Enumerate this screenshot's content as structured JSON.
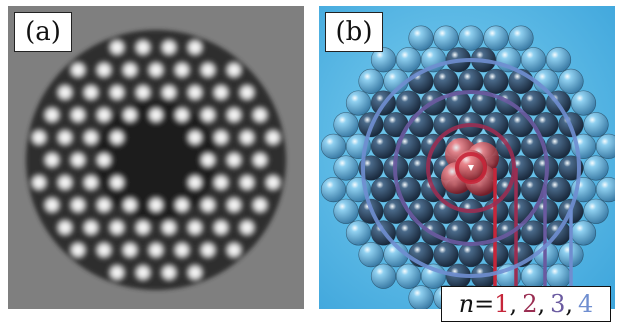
{
  "panels": [
    {
      "label": "(a)",
      "content": "grayscale micrograph of a circular close-packed cluster of bright particles"
    },
    {
      "label": "(b)",
      "content": "rendered cluster of spheres with concentric shell rings"
    }
  ],
  "legend": {
    "variable": "n",
    "equals": " = ",
    "shells": [
      {
        "n": "1",
        "color": "#c6263a"
      },
      {
        "n": "2",
        "color": "#9a2e52"
      },
      {
        "n": "3",
        "color": "#6a5aa0"
      },
      {
        "n": "4",
        "color": "#6f8ed0"
      }
    ]
  },
  "colors": {
    "panel_a_background": "#7f7f7f",
    "panel_b_background": "#3fa6dc",
    "sphere_dark": "#1a2a3e",
    "sphere_outer": "#3d7ea8",
    "core_red": "#c13a48"
  }
}
